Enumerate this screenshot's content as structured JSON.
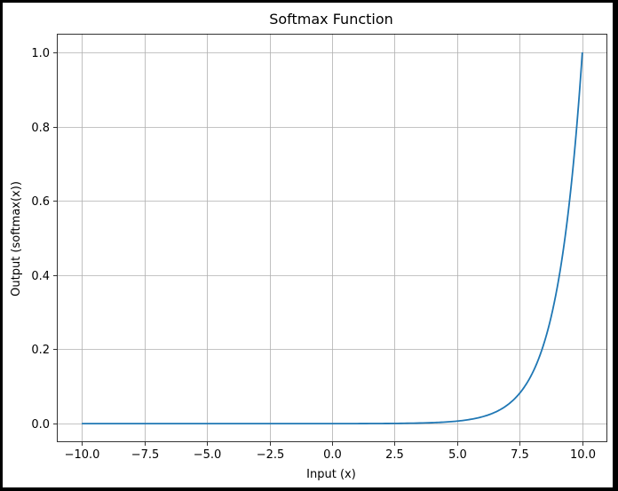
{
  "chart_data": {
    "type": "line",
    "title": "Softmax Function",
    "xlabel": "Input (x)",
    "ylabel": "Output (softmax(x))",
    "xlim": [
      -11.0,
      11.0
    ],
    "ylim": [
      -0.05,
      1.05
    ],
    "x_ticks": [
      -10.0,
      -7.5,
      -5.0,
      -2.5,
      0.0,
      2.5,
      5.0,
      7.5,
      10.0
    ],
    "x_tick_labels": [
      "−10.0",
      "−7.5",
      "−5.0",
      "−2.5",
      "0.0",
      "2.5",
      "5.0",
      "7.5",
      "10.0"
    ],
    "y_ticks": [
      0.0,
      0.2,
      0.4,
      0.6,
      0.8,
      1.0
    ],
    "y_tick_labels": [
      "0.0",
      "0.2",
      "0.4",
      "0.6",
      "0.8",
      "1.0"
    ],
    "grid": true,
    "series": [
      {
        "color": "#1f77b4",
        "x": [
          -10.0,
          -8.0,
          -6.0,
          -4.0,
          -2.0,
          0.0,
          1.0,
          2.0,
          3.0,
          4.0,
          4.5,
          5.0,
          5.5,
          6.0,
          6.5,
          7.0,
          7.5,
          8.0,
          8.5,
          9.0,
          9.25,
          9.5,
          9.75,
          10.0
        ],
        "y": [
          0.0,
          0.0,
          0.0,
          0.0,
          0.0,
          0.0,
          0.0,
          0.0003,
          0.0009,
          0.0025,
          0.0041,
          0.0067,
          0.0111,
          0.0183,
          0.0302,
          0.0498,
          0.0821,
          0.1353,
          0.2231,
          0.3679,
          0.4724,
          0.6065,
          0.7788,
          1.0
        ]
      }
    ]
  }
}
